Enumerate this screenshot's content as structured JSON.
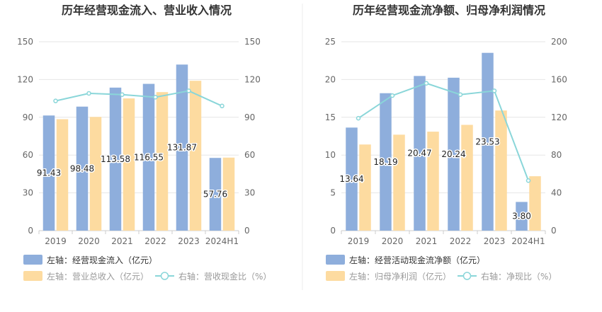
{
  "chart_data": [
    {
      "type": "bar",
      "title": "历年经营现金流入、营业收入情况",
      "categories": [
        "2019",
        "2020",
        "2021",
        "2022",
        "2023",
        "2024H1"
      ],
      "left_axis": {
        "ticks": [
          "0",
          "30",
          "60",
          "90",
          "120",
          "150"
        ],
        "range": [
          0,
          150
        ]
      },
      "right_axis": {
        "ticks": [
          "0",
          "30",
          "60",
          "90",
          "120",
          "150"
        ],
        "range": [
          0,
          150
        ]
      },
      "series": [
        {
          "name": "左轴：经营现金流入（亿元）",
          "type": "bar",
          "axis": "left",
          "color": "#8eaedc",
          "values": [
            91.43,
            98.48,
            113.58,
            116.55,
            131.87,
            57.76
          ],
          "labels": [
            "91.43",
            "98.48",
            "113.58",
            "116.55",
            "131.87",
            "57.76"
          ]
        },
        {
          "name": "左轴：营业总收入（亿元）",
          "type": "bar",
          "axis": "left",
          "color": "#fddba0",
          "values": [
            88.5,
            90.3,
            105.0,
            110.0,
            119.0,
            58.0
          ]
        },
        {
          "name": "右轴：营收现金比（%）",
          "type": "line",
          "axis": "right",
          "color": "#8ad6d9",
          "values": [
            103.0,
            109.0,
            108.0,
            106.0,
            111.0,
            99.0
          ]
        }
      ],
      "grid": true,
      "legend_position": "bottom-left"
    },
    {
      "type": "bar",
      "title": "历年经营现金流净额、归母净利润情况",
      "categories": [
        "2019",
        "2020",
        "2021",
        "2022",
        "2023",
        "2024H1"
      ],
      "left_axis": {
        "ticks": [
          "0",
          "5",
          "10",
          "15",
          "20",
          "25"
        ],
        "range": [
          0,
          25
        ]
      },
      "right_axis": {
        "ticks": [
          "0",
          "40",
          "80",
          "120",
          "160",
          "200"
        ],
        "range": [
          0,
          200
        ]
      },
      "series": [
        {
          "name": "左轴：经营活动现金流净额（亿元）",
          "type": "bar",
          "axis": "left",
          "color": "#8eaedc",
          "values": [
            13.64,
            18.19,
            20.47,
            20.24,
            23.53,
            3.8
          ],
          "labels": [
            "13.64",
            "18.19",
            "20.47",
            "20.24",
            "23.53",
            "3.80"
          ]
        },
        {
          "name": "左轴：归母净利润（亿元）",
          "type": "bar",
          "axis": "left",
          "color": "#fddba0",
          "values": [
            11.4,
            12.7,
            13.1,
            14.0,
            15.9,
            7.2
          ]
        },
        {
          "name": "右轴：净现比（%）",
          "type": "line",
          "axis": "right",
          "color": "#8ad6d9",
          "values": [
            119.0,
            143.0,
            156.0,
            144.0,
            148.0,
            53.0
          ]
        }
      ],
      "grid": true,
      "legend_position": "bottom-left"
    }
  ]
}
